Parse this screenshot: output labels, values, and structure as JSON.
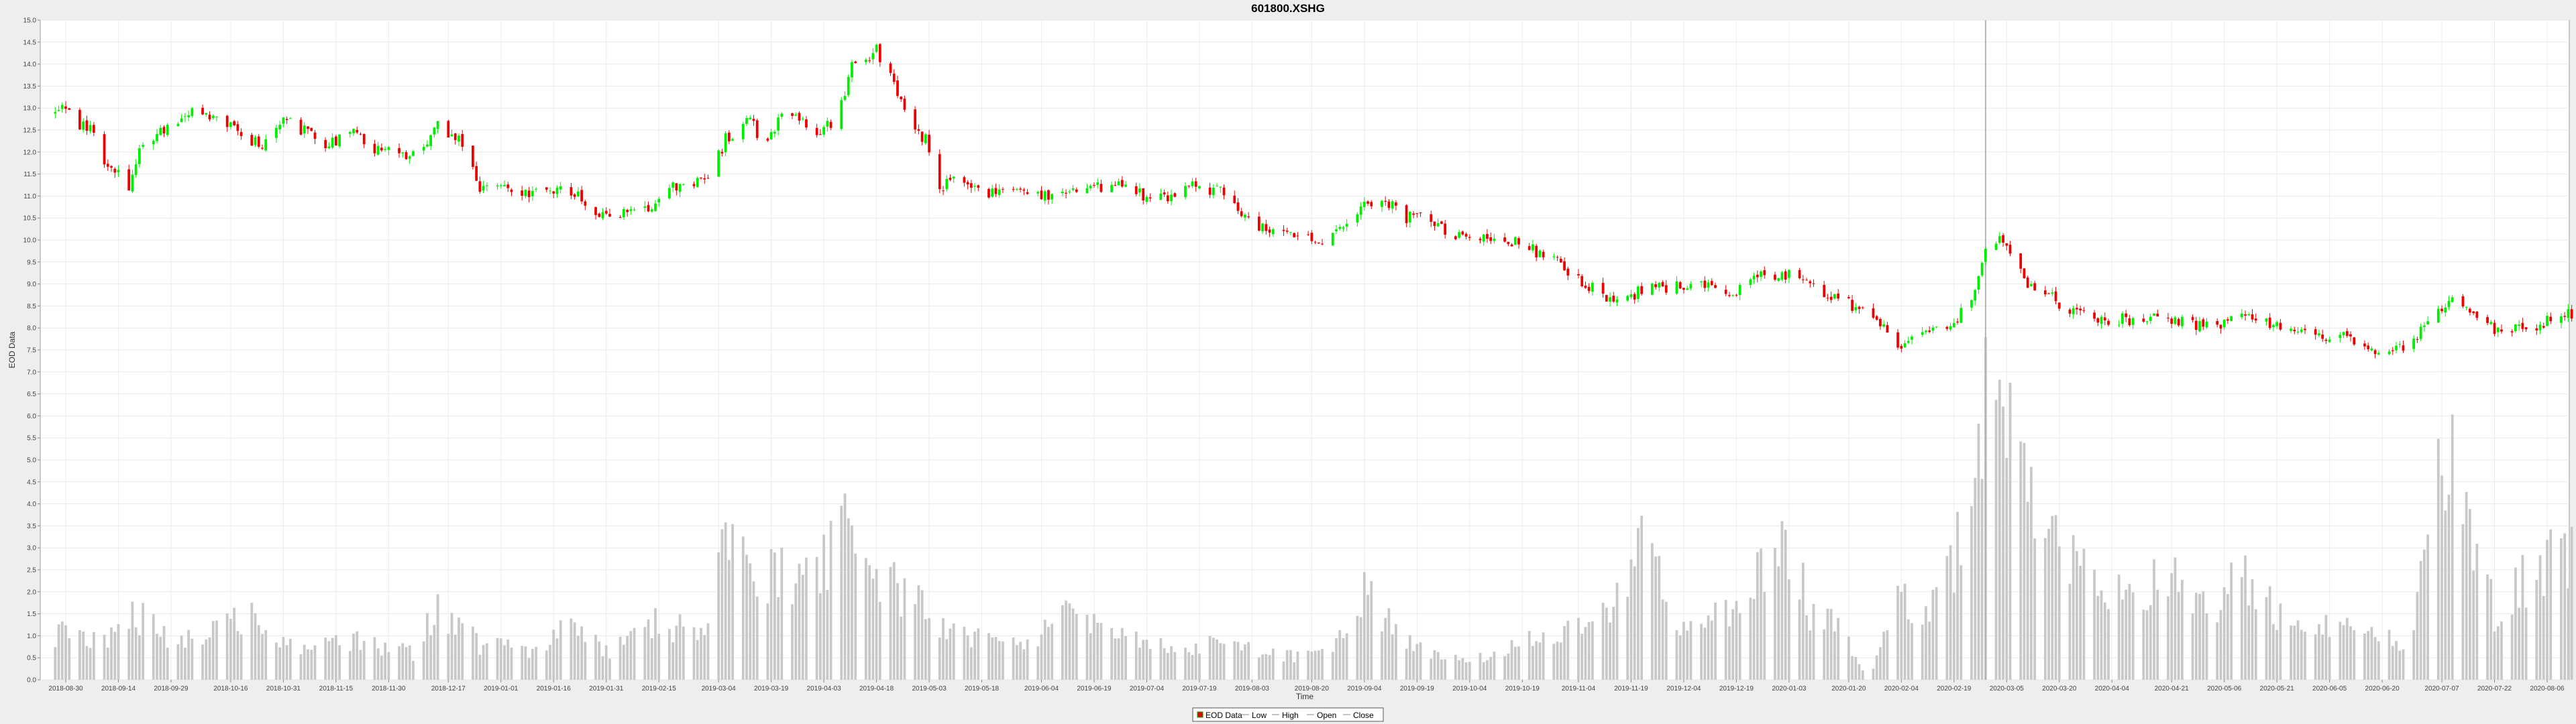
{
  "chart_data": {
    "type": "candlestick",
    "title": "601800.XSHG",
    "xlabel": "Time",
    "ylabel": "EOD Data",
    "ylim": [
      0.0,
      15.0
    ],
    "yticks": [
      "0.0",
      "0.5",
      "1.0",
      "1.5",
      "2.0",
      "2.5",
      "3.0",
      "3.5",
      "4.0",
      "4.5",
      "5.0",
      "5.5",
      "6.0",
      "6.5",
      "7.0",
      "7.5",
      "8.0",
      "8.5",
      "9.0",
      "9.5",
      "10.0",
      "10.5",
      "11.0",
      "11.5",
      "12.0",
      "12.5",
      "13.0",
      "13.5",
      "14.0",
      "14.5",
      "15.0"
    ],
    "xticks": [
      "2018-08-30",
      "2018-09-14",
      "2018-09-29",
      "2018-10-16",
      "2018-10-31",
      "2018-11-15",
      "2018-11-30",
      "2018-12-17",
      "2019-01-01",
      "2019-01-16",
      "2019-01-31",
      "2019-02-15",
      "2019-03-04",
      "2019-03-19",
      "2019-04-03",
      "2019-04-18",
      "2019-05-03",
      "2019-05-18",
      "2019-06-04",
      "2019-06-19",
      "2019-07-04",
      "2019-07-19",
      "2019-08-03",
      "2019-08-20",
      "2019-09-04",
      "2019-09-19",
      "2019-10-04",
      "2019-10-19",
      "2019-11-04",
      "2019-11-19",
      "2019-12-04",
      "2019-12-19",
      "2020-01-03",
      "2020-01-20",
      "2020-02-04",
      "2020-02-19",
      "2020-03-05",
      "2020-03-20",
      "2020-04-04",
      "2020-04-21",
      "2020-05-06",
      "2020-05-21",
      "2020-06-05",
      "2020-06-20",
      "2020-07-07",
      "2020-07-22",
      "2020-08-06"
    ],
    "legend": {
      "placement": "bottom-center",
      "items": [
        "EOD Data",
        "Low",
        "High",
        "Open",
        "Close"
      ]
    },
    "grid": true,
    "crosshair_date": "2020-02-28",
    "colors": {
      "up": "#00ee00",
      "down": "#ee0000",
      "volume": "#c8c8c8",
      "crosshair": "#b4b4b4"
    },
    "price_knots": [
      [
        "2018-08-25",
        12.7
      ],
      [
        "2018-08-29",
        13.0
      ],
      [
        "2018-09-03",
        12.6
      ],
      [
        "2018-09-08",
        12.5
      ],
      [
        "2018-09-10",
        11.8
      ],
      [
        "2018-09-17",
        11.2
      ],
      [
        "2018-09-21",
        12.2
      ],
      [
        "2018-09-28",
        12.6
      ],
      [
        "2018-10-05",
        12.9
      ],
      [
        "2018-10-12",
        12.8
      ],
      [
        "2018-10-19",
        12.4
      ],
      [
        "2018-10-25",
        12.1
      ],
      [
        "2018-10-31",
        12.7
      ],
      [
        "2018-11-06",
        12.5
      ],
      [
        "2018-11-12",
        12.2
      ],
      [
        "2018-11-20",
        12.4
      ],
      [
        "2018-11-28",
        12.0
      ],
      [
        "2018-12-07",
        11.9
      ],
      [
        "2018-12-14",
        12.6
      ],
      [
        "2018-12-21",
        12.2
      ],
      [
        "2018-12-26",
        11.2
      ],
      [
        "2019-01-04",
        11.2
      ],
      [
        "2019-01-12",
        11.0
      ],
      [
        "2019-01-20",
        11.2
      ],
      [
        "2019-01-27",
        10.7
      ],
      [
        "2019-02-01",
        10.6
      ],
      [
        "2019-02-14",
        10.8
      ],
      [
        "2019-02-22",
        11.4
      ],
      [
        "2019-03-01",
        11.3
      ],
      [
        "2019-03-06",
        12.3
      ],
      [
        "2019-03-13",
        12.7
      ],
      [
        "2019-03-17",
        12.2
      ],
      [
        "2019-03-24",
        13.0
      ],
      [
        "2019-03-31",
        12.4
      ],
      [
        "2019-04-07",
        12.8
      ],
      [
        "2019-04-11",
        14.0
      ],
      [
        "2019-04-18",
        14.3
      ],
      [
        "2019-04-23",
        13.6
      ],
      [
        "2019-04-28",
        12.5
      ],
      [
        "2019-05-02",
        12.3
      ],
      [
        "2019-05-06",
        11.2
      ],
      [
        "2019-05-13",
        11.4
      ],
      [
        "2019-05-20",
        11.1
      ],
      [
        "2019-06-01",
        11.0
      ],
      [
        "2019-06-10",
        11.1
      ],
      [
        "2019-06-19",
        11.2
      ],
      [
        "2019-06-27",
        11.3
      ],
      [
        "2019-07-03",
        11.0
      ],
      [
        "2019-07-10",
        11.0
      ],
      [
        "2019-07-17",
        11.2
      ],
      [
        "2019-07-25",
        11.1
      ],
      [
        "2019-08-03",
        10.3
      ],
      [
        "2019-08-10",
        10.2
      ],
      [
        "2019-08-17",
        10.0
      ],
      [
        "2019-08-24",
        10.0
      ],
      [
        "2019-08-29",
        10.2
      ],
      [
        "2019-09-04",
        10.9
      ],
      [
        "2019-09-10",
        10.9
      ],
      [
        "2019-09-16",
        10.5
      ],
      [
        "2019-09-21",
        10.6
      ],
      [
        "2019-09-28",
        10.1
      ],
      [
        "2019-10-11",
        10.1
      ],
      [
        "2019-10-19",
        9.9
      ],
      [
        "2019-10-29",
        9.5
      ],
      [
        "2019-11-08",
        8.9
      ],
      [
        "2019-11-16",
        8.5
      ],
      [
        "2019-11-22",
        8.9
      ],
      [
        "2019-11-30",
        8.9
      ],
      [
        "2019-12-06",
        9.0
      ],
      [
        "2019-12-12",
        8.9
      ],
      [
        "2019-12-19",
        8.8
      ],
      [
        "2019-12-25",
        9.2
      ],
      [
        "2020-01-03",
        9.2
      ],
      [
        "2020-01-09",
        9.0
      ],
      [
        "2020-01-18",
        8.6
      ],
      [
        "2020-01-26",
        8.4
      ],
      [
        "2020-02-03",
        7.5
      ],
      [
        "2020-02-09",
        7.8
      ],
      [
        "2020-02-17",
        8.0
      ],
      [
        "2020-02-24",
        8.6
      ],
      [
        "2020-02-28",
        9.8
      ],
      [
        "2020-03-04",
        10.0
      ],
      [
        "2020-03-10",
        9.1
      ],
      [
        "2020-03-16",
        8.8
      ],
      [
        "2020-03-23",
        8.4
      ],
      [
        "2020-04-01",
        8.2
      ],
      [
        "2020-04-10",
        8.2
      ],
      [
        "2020-04-18",
        8.3
      ],
      [
        "2020-04-25",
        8.1
      ],
      [
        "2020-05-03",
        8.0
      ],
      [
        "2020-05-09",
        8.3
      ],
      [
        "2020-05-17",
        8.2
      ],
      [
        "2020-05-24",
        7.9
      ],
      [
        "2020-06-01",
        7.8
      ],
      [
        "2020-06-11",
        7.8
      ],
      [
        "2020-06-19",
        7.5
      ],
      [
        "2020-06-26",
        7.5
      ],
      [
        "2020-07-02",
        8.0
      ],
      [
        "2020-07-08",
        8.6
      ],
      [
        "2020-07-14",
        8.5
      ],
      [
        "2020-07-22",
        8.0
      ],
      [
        "2020-07-30",
        8.0
      ],
      [
        "2020-08-04",
        8.1
      ],
      [
        "2020-08-09",
        8.3
      ],
      [
        "2020-08-13",
        8.3
      ]
    ],
    "volume_knots": [
      [
        "2018-08-25",
        1.1
      ],
      [
        "2018-09-10",
        0.8
      ],
      [
        "2018-09-17",
        1.6
      ],
      [
        "2018-09-28",
        0.9
      ],
      [
        "2018-10-12",
        1.2
      ],
      [
        "2018-10-20",
        1.5
      ],
      [
        "2018-10-31",
        0.8
      ],
      [
        "2018-11-20",
        0.9
      ],
      [
        "2018-12-07",
        0.6
      ],
      [
        "2018-12-14",
        1.7
      ],
      [
        "2018-12-26",
        0.8
      ],
      [
        "2019-01-10",
        0.7
      ],
      [
        "2019-01-20",
        1.3
      ],
      [
        "2019-02-01",
        0.6
      ],
      [
        "2019-02-14",
        1.3
      ],
      [
        "2019-03-01",
        1.0
      ],
      [
        "2019-03-04",
        3.2
      ],
      [
        "2019-03-13",
        2.4
      ],
      [
        "2019-03-24",
        2.3
      ],
      [
        "2019-04-03",
        2.6
      ],
      [
        "2019-04-08",
        4.1
      ],
      [
        "2019-04-18",
        2.4
      ],
      [
        "2019-04-28",
        1.8
      ],
      [
        "2019-05-06",
        1.3
      ],
      [
        "2019-05-20",
        0.9
      ],
      [
        "2019-06-01",
        0.7
      ],
      [
        "2019-06-10",
        1.6
      ],
      [
        "2019-06-27",
        1.0
      ],
      [
        "2019-07-10",
        0.7
      ],
      [
        "2019-07-25",
        0.8
      ],
      [
        "2019-08-17",
        0.5
      ],
      [
        "2019-08-29",
        0.9
      ],
      [
        "2019-09-04",
        1.9
      ],
      [
        "2019-09-16",
        0.9
      ],
      [
        "2019-09-28",
        0.5
      ],
      [
        "2019-10-11",
        0.5
      ],
      [
        "2019-10-19",
        0.9
      ],
      [
        "2019-11-08",
        1.2
      ],
      [
        "2019-11-16",
        1.8
      ],
      [
        "2019-11-22",
        3.0
      ],
      [
        "2019-12-04",
        1.2
      ],
      [
        "2019-12-19",
        1.6
      ],
      [
        "2019-12-25",
        2.6
      ],
      [
        "2020-01-03",
        3.0
      ],
      [
        "2020-01-09",
        1.6
      ],
      [
        "2020-01-18",
        1.2
      ],
      [
        "2020-01-26",
        0.0
      ],
      [
        "2020-02-03",
        1.9
      ],
      [
        "2020-02-12",
        1.5
      ],
      [
        "2020-02-19",
        2.5
      ],
      [
        "2020-02-28",
        6.5
      ],
      [
        "2020-03-06",
        5.2
      ],
      [
        "2020-03-12",
        3.8
      ],
      [
        "2020-03-20",
        3.4
      ],
      [
        "2020-04-01",
        2.2
      ],
      [
        "2020-04-10",
        1.8
      ],
      [
        "2020-04-21",
        2.5
      ],
      [
        "2020-05-03",
        1.5
      ],
      [
        "2020-05-09",
        2.4
      ],
      [
        "2020-05-24",
        1.3
      ],
      [
        "2020-06-11",
        1.2
      ],
      [
        "2020-06-26",
        0.8
      ],
      [
        "2020-07-02",
        2.4
      ],
      [
        "2020-07-08",
        5.3
      ],
      [
        "2020-07-14",
        3.8
      ],
      [
        "2020-07-22",
        1.5
      ],
      [
        "2020-07-30",
        2.2
      ],
      [
        "2020-08-09",
        2.8
      ],
      [
        "2020-08-13",
        3.0
      ]
    ]
  }
}
